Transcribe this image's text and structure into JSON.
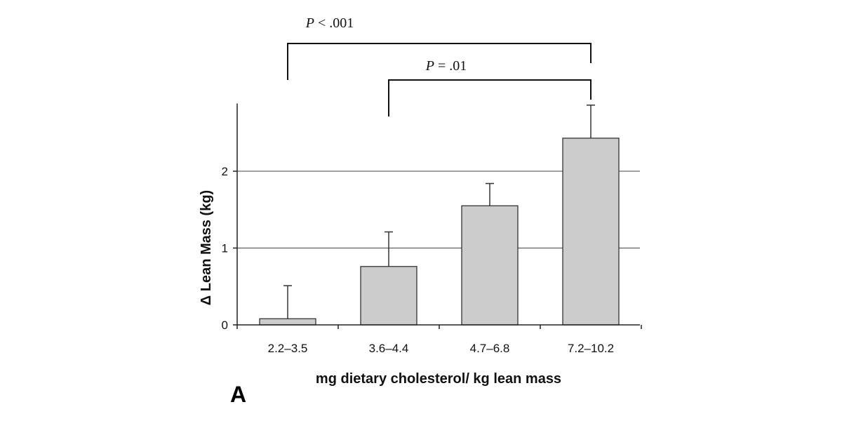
{
  "chart_data": {
    "type": "bar",
    "categories": [
      "2.2–3.5",
      "3.6–4.4",
      "4.7–6.8",
      "7.2–10.2"
    ],
    "values": [
      0.08,
      0.76,
      1.55,
      2.43
    ],
    "error_upper": [
      0.51,
      1.21,
      1.84,
      2.86
    ],
    "xlabel": "mg dietary cholesterol/ kg lean mass",
    "ylabel": "Δ Lean Mass (kg)",
    "ylim": [
      0,
      2.9
    ],
    "yticks": [
      "0",
      "1",
      "2"
    ],
    "ytick_values": [
      0,
      1,
      2
    ],
    "gridlines": [
      1,
      2
    ],
    "bar_color": "#cccccc",
    "significance": [
      {
        "from": 0,
        "to": 3,
        "label_italic": "P",
        "label_rest": " < .001"
      },
      {
        "from": 1,
        "to": 3,
        "label_italic": "P",
        "label_rest": " = .01"
      }
    ],
    "panel_label": "A"
  }
}
